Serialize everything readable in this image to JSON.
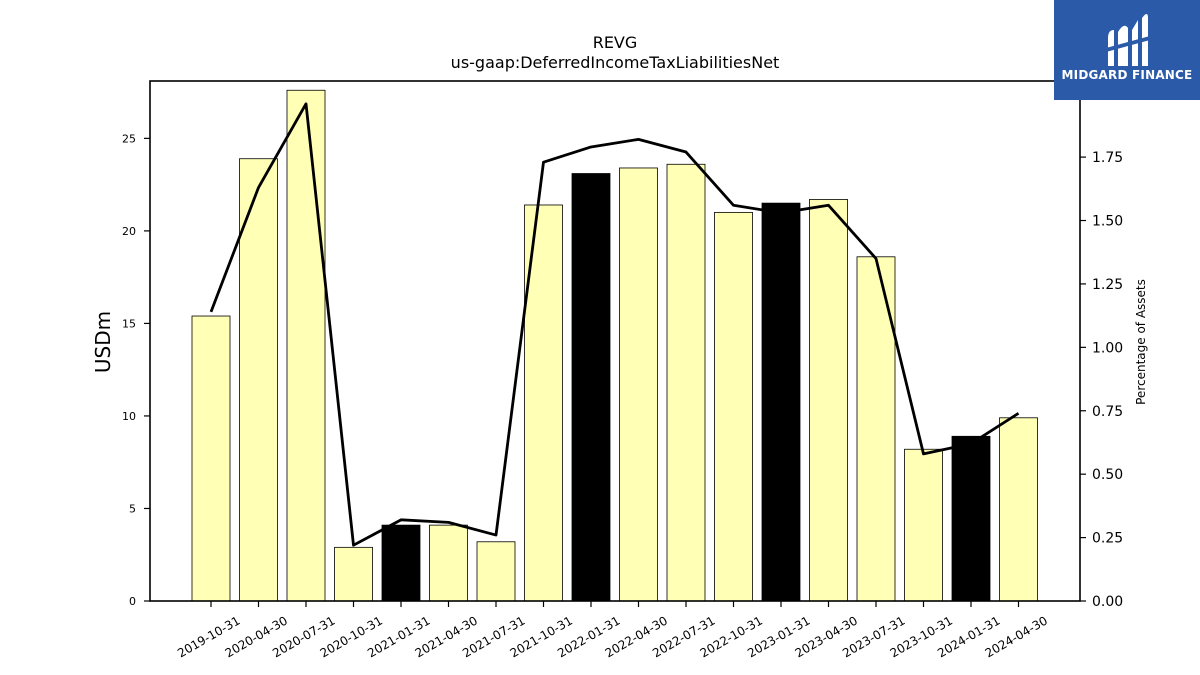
{
  "chart_data": {
    "type": "bar",
    "title": "REVG",
    "subtitle": "us-gaap:DeferredIncomeTaxLiabilitiesNet",
    "ylabel": "USDm",
    "y2label": "Percentage of Assets",
    "categories": [
      "2019-10-31",
      "2020-04-30",
      "2020-07-31",
      "2020-10-31",
      "2021-01-31",
      "2021-04-30",
      "2021-07-31",
      "2021-10-31",
      "2022-01-31",
      "2022-04-30",
      "2022-07-31",
      "2022-10-31",
      "2023-01-31",
      "2023-04-30",
      "2023-07-31",
      "2023-10-31",
      "2024-01-31",
      "2024-04-30"
    ],
    "series": [
      {
        "type": "bar",
        "values": [
          15.4,
          23.9,
          27.6,
          2.9,
          4.1,
          4.1,
          3.2,
          21.4,
          23.1,
          23.4,
          23.6,
          21.0,
          21.5,
          21.7,
          18.6,
          8.2,
          8.9,
          9.9
        ],
        "highlight": [
          false,
          false,
          false,
          false,
          true,
          false,
          false,
          false,
          true,
          false,
          false,
          false,
          true,
          false,
          false,
          false,
          true,
          false
        ],
        "color": "#ffffb5",
        "highlight_color": "#000000"
      },
      {
        "type": "line",
        "axis": "right",
        "values": [
          1.14,
          1.63,
          1.96,
          0.22,
          0.32,
          0.31,
          0.26,
          1.73,
          1.79,
          1.82,
          1.77,
          1.56,
          1.53,
          1.56,
          1.35,
          0.58,
          0.62,
          0.74
        ],
        "color": "#000000"
      }
    ],
    "ylim": [
      0,
      28.1
    ],
    "yticks": [
      0,
      5,
      10,
      15,
      20,
      25
    ],
    "y2lim": [
      0,
      2.05
    ],
    "y2ticks": [
      "0.00",
      "0.25",
      "0.50",
      "0.75",
      "1.00",
      "1.25",
      "1.50",
      "1.75"
    ],
    "grid": false,
    "legend": "none"
  },
  "logo": {
    "text": "MIDGARD FINANCE"
  }
}
